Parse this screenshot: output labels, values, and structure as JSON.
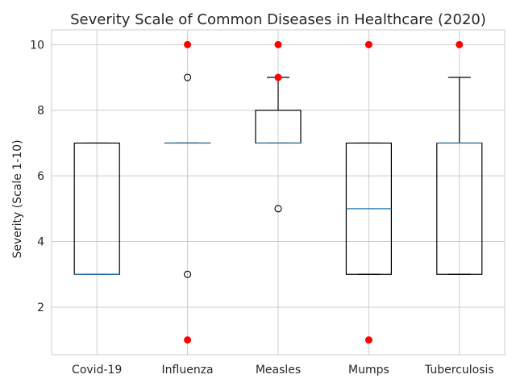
{
  "chart_data": {
    "type": "box",
    "title": "Severity Scale of Common Diseases in Healthcare (2020)",
    "xlabel": "",
    "ylabel": "Severity (Scale 1-10)",
    "ylim": [
      0.55,
      10.45
    ],
    "yticks": [
      2,
      4,
      6,
      8,
      10
    ],
    "grid": true,
    "categories": [
      "Covid-19",
      "Influenza",
      "Measles",
      "Mumps",
      "Tuberculosis"
    ],
    "boxes": [
      {
        "category": "Covid-19",
        "whisker_low": 3,
        "q1": 3,
        "median": 3,
        "q3": 7,
        "whisker_high": 7,
        "fliers": [],
        "outliers": []
      },
      {
        "category": "Influenza",
        "whisker_low": 7,
        "q1": 7,
        "median": 7,
        "q3": 7,
        "whisker_high": 7,
        "fliers": [
          9,
          3
        ],
        "outliers": [
          10,
          1
        ]
      },
      {
        "category": "Measles",
        "whisker_low": 7,
        "q1": 7,
        "median": 7,
        "q3": 8,
        "whisker_high": 9,
        "fliers": [
          5
        ],
        "outliers": [
          10,
          9
        ]
      },
      {
        "category": "Mumps",
        "whisker_low": 3,
        "q1": 3,
        "median": 5,
        "q3": 7,
        "whisker_high": 7,
        "fliers": [],
        "outliers": [
          10,
          1
        ]
      },
      {
        "category": "Tuberculosis",
        "whisker_low": 3,
        "q1": 3,
        "median": 7,
        "q3": 7,
        "whisker_high": 9,
        "fliers": [],
        "outliers": [
          10
        ]
      }
    ],
    "colors": {
      "box": "#000000",
      "median": "#1f77b4",
      "outlier": "#ff0000",
      "grid": "#cccccc"
    }
  }
}
